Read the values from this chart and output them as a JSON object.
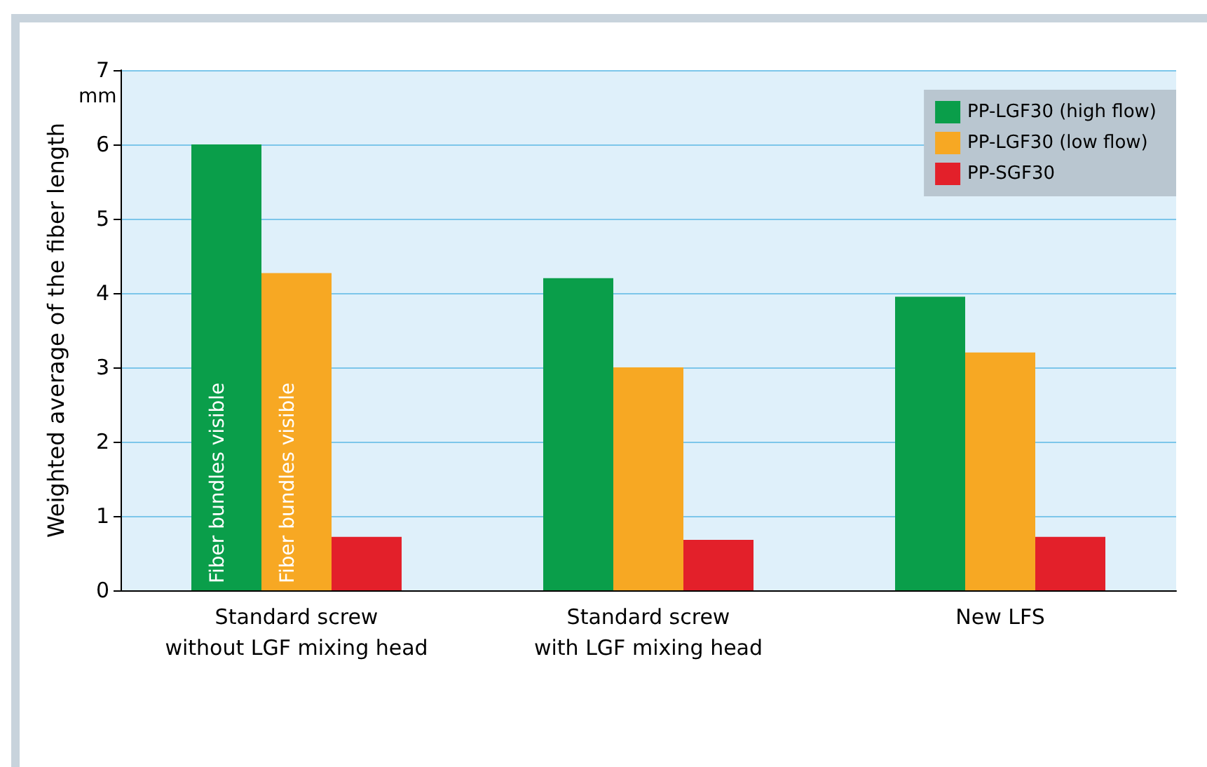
{
  "chart_data": {
    "type": "bar",
    "ylabel": "Weighted average of the fiber length",
    "categories": [
      "Standard screw\nwithout LGF mixing head",
      "Standard screw\nwith LGF mixing head",
      "New LFS"
    ],
    "series": [
      {
        "name": "PP-LGF30 (high flow)",
        "color": "#0a9e4a",
        "values": [
          6.0,
          4.2,
          3.95
        ]
      },
      {
        "name": "PP-LGF30 (low flow)",
        "color": "#f7a823",
        "values": [
          4.27,
          3.0,
          3.2
        ]
      },
      {
        "name": "PP-SGF30",
        "color": "#e3202a",
        "values": [
          0.72,
          0.68,
          0.72
        ]
      }
    ],
    "ylim": [
      0,
      7
    ],
    "yticks": [
      0,
      1,
      2,
      3,
      4,
      5,
      6,
      7
    ],
    "grid": "y",
    "legend": "top right",
    "annotations": [
      "mm",
      "Fiber bundles visible",
      "Fiber bundles visible"
    ]
  }
}
